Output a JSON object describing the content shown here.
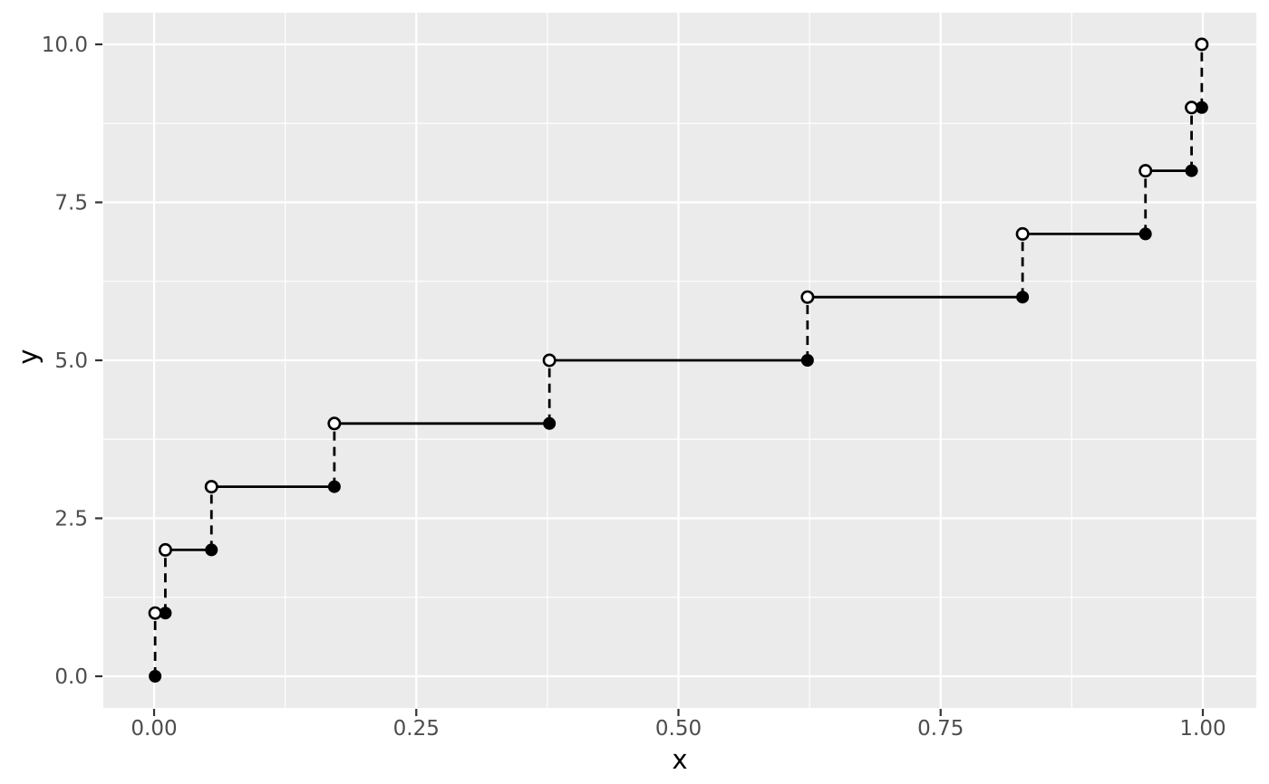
{
  "chart_data": {
    "type": "line",
    "subtype": "step-function-quantile",
    "title": "",
    "xlabel": "x",
    "ylabel": "y",
    "x_domain": [
      0,
      1
    ],
    "y_domain": [
      0,
      10
    ],
    "x_ticks": {
      "values": [
        0,
        0.25,
        0.5,
        0.75,
        1.0
      ],
      "labels": [
        "0.00",
        "0.25",
        "0.50",
        "0.75",
        "1.00"
      ]
    },
    "y_ticks": {
      "values": [
        0,
        2.5,
        5,
        7.5,
        10
      ],
      "labels": [
        "0.0",
        "2.5",
        "5.0",
        "7.5",
        "10.0"
      ]
    },
    "x_minor_gridlines": [
      0.125,
      0.375,
      0.625,
      0.875
    ],
    "y_minor_gridlines": [
      1.25,
      3.75,
      6.25,
      8.75
    ],
    "grid": "on",
    "legend": "none",
    "jump_x": [
      0.000977,
      0.010742,
      0.054688,
      0.171875,
      0.376953,
      0.623047,
      0.828125,
      0.945312,
      0.989258,
      0.999023
    ],
    "y_levels": [
      0,
      1,
      2,
      3,
      4,
      5,
      6,
      7,
      8,
      9,
      10
    ],
    "closed_points": [
      [
        0.000977,
        0
      ],
      [
        0.010742,
        1
      ],
      [
        0.054688,
        2
      ],
      [
        0.171875,
        3
      ],
      [
        0.376953,
        4
      ],
      [
        0.623047,
        5
      ],
      [
        0.828125,
        6
      ],
      [
        0.945312,
        7
      ],
      [
        0.989258,
        8
      ],
      [
        0.999023,
        9
      ]
    ],
    "open_points": [
      [
        0.000977,
        1
      ],
      [
        0.010742,
        2
      ],
      [
        0.054688,
        3
      ],
      [
        0.171875,
        4
      ],
      [
        0.376953,
        5
      ],
      [
        0.623047,
        6
      ],
      [
        0.828125,
        7
      ],
      [
        0.945312,
        8
      ],
      [
        0.989258,
        9
      ],
      [
        0.999023,
        10
      ]
    ],
    "colors": {
      "panel_background": "#EBEBEB",
      "gridline": "#FFFFFF",
      "line": "#000000",
      "closed_point_fill": "#000000",
      "open_point_fill": "#FFFFFF",
      "point_stroke": "#000000",
      "tick_mark": "#333333",
      "tick_label": "#4D4D4D",
      "axis_title": "#000000",
      "figure_background": "#FFFFFF"
    }
  }
}
